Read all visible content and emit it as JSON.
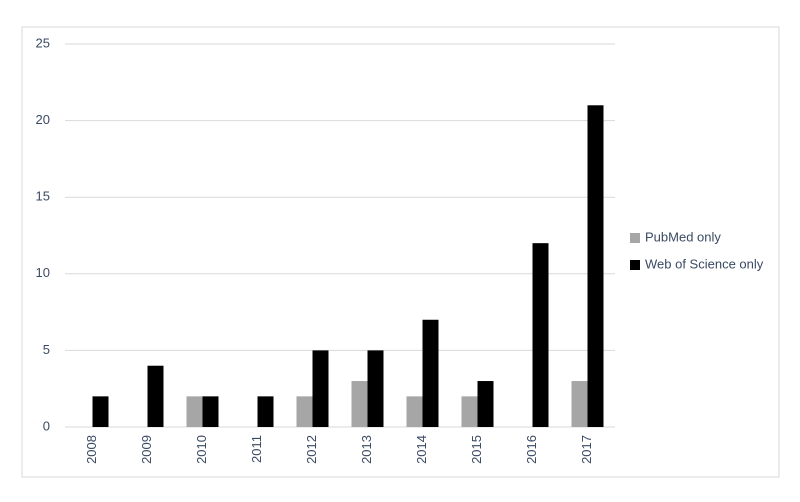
{
  "chart_data": {
    "type": "bar",
    "categories": [
      "2008",
      "2009",
      "2010",
      "2011",
      "2012",
      "2013",
      "2014",
      "2015",
      "2016",
      "2017"
    ],
    "series": [
      {
        "name": "PubMed only",
        "color": "#a6a6a6",
        "values": [
          0,
          0,
          2,
          0,
          2,
          3,
          2,
          2,
          0,
          3
        ]
      },
      {
        "name": "Web of Science only",
        "color": "#000000",
        "values": [
          2,
          4,
          2,
          2,
          5,
          5,
          7,
          3,
          12,
          21
        ]
      }
    ],
    "ylim": [
      0,
      25
    ],
    "yticks": [
      0,
      5,
      10,
      15,
      20,
      25
    ],
    "grid": true,
    "legend": "right"
  }
}
